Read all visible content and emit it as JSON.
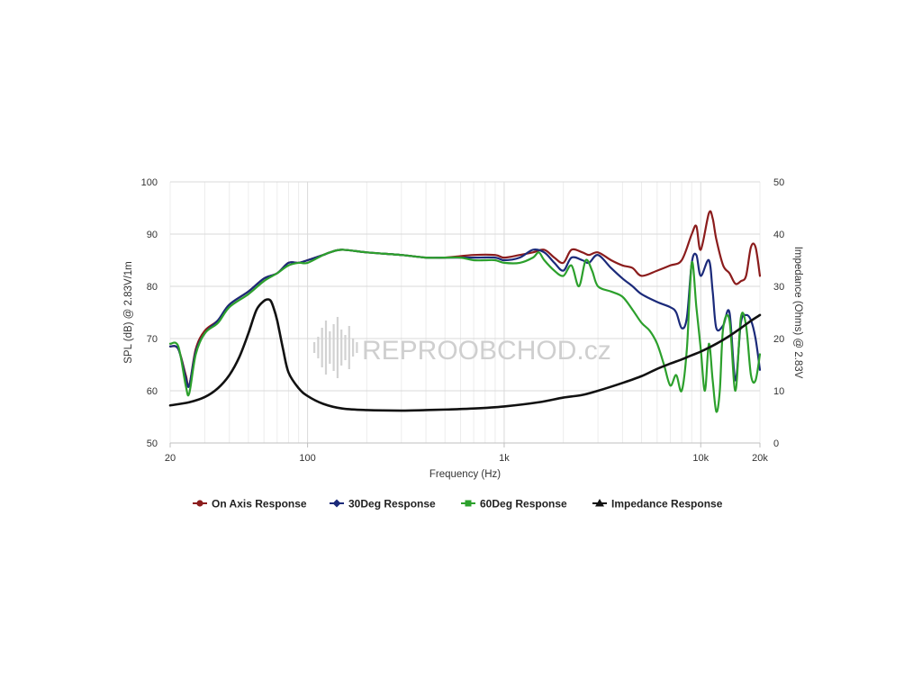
{
  "chart_data": {
    "type": "line",
    "title": "",
    "xlabel": "Frequency (Hz)",
    "ylabel_left": "SPL (dB) @ 2.83V/1m",
    "ylabel_right": "Impedance (Ohms) @ 2.83V",
    "x_scale": "log",
    "xlim": [
      20,
      20000
    ],
    "ylim_left": [
      50,
      100
    ],
    "ylim_right": [
      0,
      50
    ],
    "x_ticks": [
      20,
      100,
      1000,
      10000,
      20000
    ],
    "x_tick_labels": [
      "20",
      "100",
      "1k",
      "10k",
      "20k"
    ],
    "y_ticks_left": [
      50,
      60,
      70,
      80,
      90,
      100
    ],
    "y_tick_labels_left": [
      "50",
      "60",
      "70",
      "80",
      "90",
      "100"
    ],
    "y_ticks_right": [
      0,
      10,
      20,
      30,
      40,
      50
    ],
    "y_tick_labels_right": [
      "0",
      "10",
      "20",
      "30",
      "40",
      "50"
    ],
    "grid": true,
    "legend_position": "bottom-center",
    "watermark": "REPROOBCHOD.cz",
    "series": [
      {
        "name": "On Axis Response",
        "color": "#8b1c1c",
        "axis": "left",
        "marker": "circle",
        "x": [
          20,
          22,
          24,
          25,
          27,
          30,
          35,
          40,
          50,
          60,
          70,
          80,
          90,
          100,
          120,
          130,
          150,
          200,
          300,
          400,
          500,
          700,
          900,
          1000,
          1200,
          1400,
          1600,
          1800,
          2000,
          2200,
          2500,
          2700,
          3000,
          3500,
          4000,
          4500,
          5000,
          6000,
          7000,
          8000,
          9000,
          9500,
          10000,
          11000,
          11500,
          12000,
          13000,
          14000,
          15000,
          16000,
          17000,
          18000,
          19000,
          20000
        ],
        "y": [
          68.5,
          68,
          63,
          61,
          68,
          71.5,
          73.5,
          76.5,
          79,
          81.5,
          82.5,
          84.5,
          84.5,
          85,
          86,
          86.5,
          87,
          86.5,
          86,
          85.5,
          85.5,
          86,
          86,
          85.5,
          86,
          86.5,
          87,
          85.5,
          84.5,
          87,
          86.5,
          86,
          86.5,
          85,
          84,
          83.5,
          82,
          83,
          84,
          85,
          90,
          91.5,
          87,
          94,
          93,
          89,
          84,
          82.5,
          80.5,
          81,
          82,
          87.5,
          87.5,
          82
        ]
      },
      {
        "name": "30Deg Response",
        "color": "#1b2a7a",
        "axis": "left",
        "marker": "diamond",
        "x": [
          20,
          22,
          24,
          25,
          27,
          30,
          35,
          40,
          50,
          60,
          70,
          80,
          90,
          100,
          120,
          130,
          150,
          200,
          300,
          400,
          500,
          700,
          900,
          1000,
          1200,
          1400,
          1600,
          1800,
          2000,
          2200,
          2500,
          2700,
          3000,
          3500,
          4000,
          4500,
          5000,
          6000,
          7000,
          7500,
          8000,
          8500,
          9000,
          9500,
          10000,
          11000,
          11500,
          12000,
          13000,
          14000,
          15000,
          16000,
          17000,
          18000,
          19000,
          20000
        ],
        "y": [
          68.5,
          68,
          62.5,
          61,
          67.5,
          71,
          73.5,
          76.5,
          79,
          81.5,
          82.5,
          84.5,
          84.5,
          85,
          86,
          86.5,
          87,
          86.5,
          86,
          85.5,
          85.5,
          85.5,
          85.5,
          85,
          85.5,
          87,
          86.5,
          84.5,
          83,
          85.5,
          85,
          84.5,
          86,
          83.5,
          81.5,
          80,
          78.5,
          77,
          76,
          75,
          72,
          74,
          84.5,
          86,
          82,
          85,
          79,
          72,
          72.5,
          75,
          62,
          73,
          74.5,
          73.5,
          70,
          64
        ]
      },
      {
        "name": "60Deg Response",
        "color": "#2ca02c",
        "axis": "left",
        "marker": "square",
        "x": [
          20,
          22,
          24,
          25,
          27,
          30,
          35,
          40,
          50,
          60,
          70,
          80,
          90,
          100,
          120,
          130,
          150,
          200,
          300,
          400,
          500,
          600,
          700,
          800,
          900,
          1000,
          1200,
          1400,
          1500,
          1600,
          1800,
          2000,
          2200,
          2400,
          2600,
          2800,
          3000,
          3500,
          4000,
          4500,
          5000,
          5500,
          6000,
          6500,
          7000,
          7500,
          8000,
          8500,
          9000,
          9500,
          10000,
          10500,
          11000,
          11500,
          12000,
          12500,
          13000,
          14000,
          15000,
          16000,
          17000,
          18000,
          19000,
          20000
        ],
        "y": [
          69,
          68.5,
          61,
          59.5,
          67,
          71,
          73,
          76,
          78.5,
          81,
          82.5,
          84,
          84.5,
          84.5,
          86,
          86.5,
          87,
          86.5,
          86,
          85.5,
          85.5,
          85.5,
          85,
          85,
          85,
          84.5,
          84.5,
          85.5,
          86.5,
          85,
          83,
          82,
          84,
          80,
          85,
          83,
          80,
          79,
          78,
          75.5,
          73,
          71.5,
          69,
          65,
          61,
          63,
          60,
          68,
          84.5,
          76,
          68,
          60,
          69,
          62,
          56,
          60,
          72,
          73.5,
          60,
          74,
          72.5,
          63,
          62,
          67
        ]
      },
      {
        "name": "Impedance Response",
        "color": "#111111",
        "axis": "right",
        "marker": "triangle",
        "x": [
          20,
          25,
          30,
          35,
          40,
          45,
          50,
          55,
          60,
          63,
          65,
          67,
          70,
          75,
          80,
          90,
          100,
          120,
          150,
          200,
          300,
          400,
          500,
          700,
          1000,
          1500,
          2000,
          2500,
          3000,
          4000,
          5000,
          6000,
          7000,
          8000,
          9000,
          10000,
          12000,
          14000,
          16000,
          18000,
          20000
        ],
        "y": [
          7.2,
          7.8,
          8.8,
          10.5,
          13,
          16.5,
          21,
          25.5,
          27.2,
          27.5,
          27.2,
          26,
          23.5,
          18,
          13.5,
          10.5,
          9,
          7.5,
          6.6,
          6.3,
          6.2,
          6.3,
          6.4,
          6.6,
          7.0,
          7.8,
          8.7,
          9.2,
          10.0,
          11.5,
          12.8,
          14.2,
          15.2,
          16.0,
          16.8,
          17.5,
          19.0,
          20.5,
          22.0,
          23.4,
          24.5
        ]
      }
    ]
  }
}
